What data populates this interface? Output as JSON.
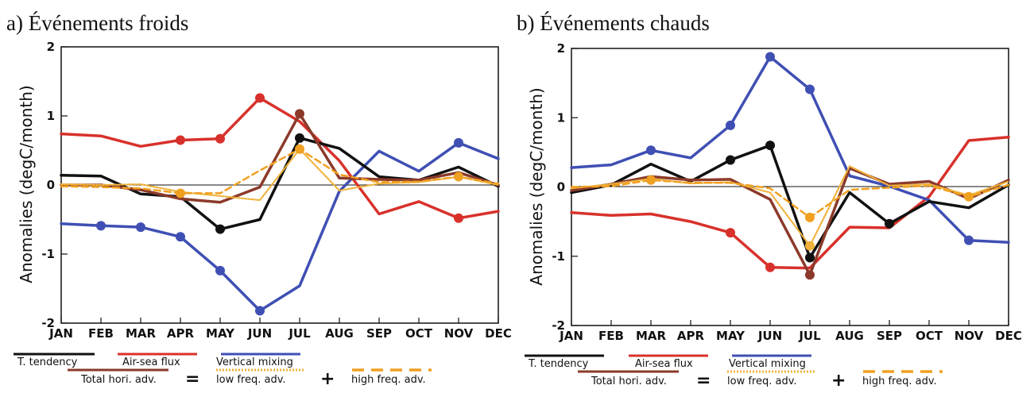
{
  "panels": [
    {
      "title": "a) Événements froids"
    },
    {
      "title": "b) Événements chauds"
    }
  ],
  "legend": {
    "tendency": "T. tendency",
    "airsea": "Air-sea flux",
    "vmix": "Vertical mixing",
    "horiz": "Total hori. adv.",
    "equals": "=",
    "lowfreq": "low freq. adv.",
    "plus": "+",
    "highfreq": "high freq. adv."
  },
  "colors": {
    "tendency": "#111111",
    "airsea": "#d8312b",
    "vmix": "#3f4fb3",
    "horiz": "#8b3a2a",
    "lowfreq": "#f0b23a",
    "highfreq": "#f0a020"
  },
  "chart_data": [
    {
      "type": "line",
      "title": "a) Événements froids",
      "ylabel": "Anomalies (degC/month)",
      "ylim": [
        -2,
        2
      ],
      "yticks": [
        "2",
        "1",
        "0",
        "-1",
        "-2"
      ],
      "categories": [
        "JAN",
        "FEB",
        "MAR",
        "APR",
        "MAY",
        "JUN",
        "JUL",
        "AUG",
        "SEP",
        "OCT",
        "NOV",
        "DEC"
      ],
      "series": [
        {
          "name": "T. tendency",
          "values": [
            0.14,
            0.13,
            -0.13,
            -0.17,
            -0.64,
            -0.5,
            0.68,
            0.53,
            0.12,
            0.07,
            0.26,
            -0.02
          ],
          "markers": [
            4,
            6
          ]
        },
        {
          "name": "Air-sea flux",
          "values": [
            0.74,
            0.71,
            0.56,
            0.65,
            0.67,
            1.26,
            0.92,
            0.35,
            -0.42,
            -0.24,
            -0.48,
            -0.38
          ],
          "markers": [
            3,
            4,
            5,
            10
          ]
        },
        {
          "name": "Vertical mixing",
          "values": [
            -0.56,
            -0.59,
            -0.61,
            -0.75,
            -1.24,
            -1.82,
            -1.46,
            -0.09,
            0.49,
            0.2,
            0.61,
            0.38
          ],
          "markers": [
            1,
            2,
            3,
            4,
            5,
            10
          ]
        },
        {
          "name": "Total hori. adv.",
          "values": [
            0.0,
            0.0,
            -0.07,
            -0.2,
            -0.25,
            -0.03,
            1.03,
            0.1,
            0.08,
            0.07,
            0.18,
            0.0
          ],
          "markers": [
            6
          ]
        },
        {
          "name": "low freq. adv.",
          "values": [
            0.01,
            0.0,
            0.01,
            -0.1,
            -0.16,
            -0.22,
            0.52,
            -0.08,
            0.02,
            0.04,
            0.12,
            0.0
          ],
          "markers": []
        },
        {
          "name": "high freq. adv.",
          "values": [
            -0.02,
            -0.03,
            -0.05,
            -0.12,
            -0.12,
            0.21,
            0.52,
            0.15,
            0.04,
            0.05,
            0.12,
            0.02
          ],
          "markers": [
            3,
            6,
            10
          ]
        }
      ]
    },
    {
      "type": "line",
      "title": "b) Événements chauds",
      "ylabel": "Anomalies (degC/month)",
      "ylim": [
        -2,
        2
      ],
      "yticks": [
        "2",
        "1",
        "0",
        "-1",
        "-2"
      ],
      "categories": [
        "JAN",
        "FEB",
        "MAR",
        "APR",
        "MAY",
        "JUN",
        "JUL",
        "AUG",
        "SEP",
        "OCT",
        "NOV",
        "DEC"
      ],
      "series": [
        {
          "name": "T. tendency",
          "values": [
            -0.08,
            0.03,
            0.33,
            0.08,
            0.39,
            0.6,
            -1.02,
            -0.08,
            -0.53,
            -0.21,
            -0.3,
            0.03
          ],
          "markers": [
            4,
            5,
            6,
            8
          ]
        },
        {
          "name": "Air-sea flux",
          "values": [
            -0.37,
            -0.41,
            -0.39,
            -0.5,
            -0.66,
            -1.16,
            -1.17,
            -0.58,
            -0.59,
            -0.14,
            0.67,
            0.72
          ],
          "markers": [
            4,
            5
          ]
        },
        {
          "name": "Vertical mixing",
          "values": [
            0.28,
            0.32,
            0.53,
            0.42,
            0.89,
            1.88,
            1.41,
            0.16,
            0.01,
            -0.19,
            -0.77,
            -0.8
          ],
          "markers": [
            2,
            4,
            5,
            6,
            10
          ]
        },
        {
          "name": "Total hori. adv.",
          "values": [
            -0.05,
            0.04,
            0.15,
            0.1,
            0.11,
            -0.18,
            -1.27,
            0.27,
            0.04,
            0.08,
            -0.17,
            0.1
          ],
          "markers": [
            6
          ]
        },
        {
          "name": "low freq. adv.",
          "values": [
            -0.02,
            0.04,
            0.12,
            0.05,
            0.07,
            -0.08,
            -0.85,
            0.3,
            0.02,
            0.04,
            -0.12,
            0.08
          ],
          "markers": [
            6
          ]
        },
        {
          "name": "high freq. adv.",
          "values": [
            0.0,
            0.01,
            0.1,
            0.06,
            0.06,
            -0.02,
            -0.44,
            -0.04,
            -0.01,
            0.02,
            -0.14,
            0.03
          ],
          "markers": [
            2,
            6,
            10
          ]
        }
      ]
    }
  ]
}
